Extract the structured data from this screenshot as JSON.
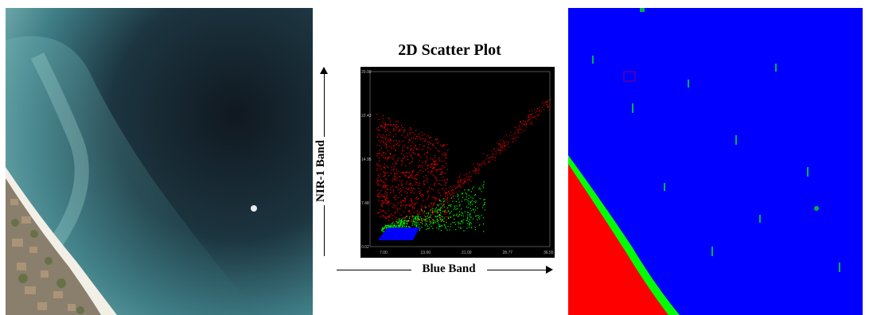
{
  "title": "2D Scatter Plot",
  "y_axis_label": "NIR-1 Band",
  "x_axis_label": "Blue Band",
  "chart_data": {
    "type": "scatter",
    "title": "2D Scatter Plot",
    "xlabel": "Blue Band",
    "ylabel": "NIR-1 Band",
    "y_ticks": [
      "0.02",
      "7.48",
      "14.95",
      "22.43",
      "29.90"
    ],
    "x_ticks": [
      "7.00",
      "13.00",
      "21.00",
      "28.77",
      "36.55"
    ],
    "series": [
      {
        "color": "#ff0000"
      },
      {
        "color": "#00ff00"
      },
      {
        "color": "#0000ff"
      }
    ]
  },
  "colors": {
    "class_red": "#ff0000",
    "class_green": "#00ff00",
    "class_blue": "#0000ff"
  }
}
